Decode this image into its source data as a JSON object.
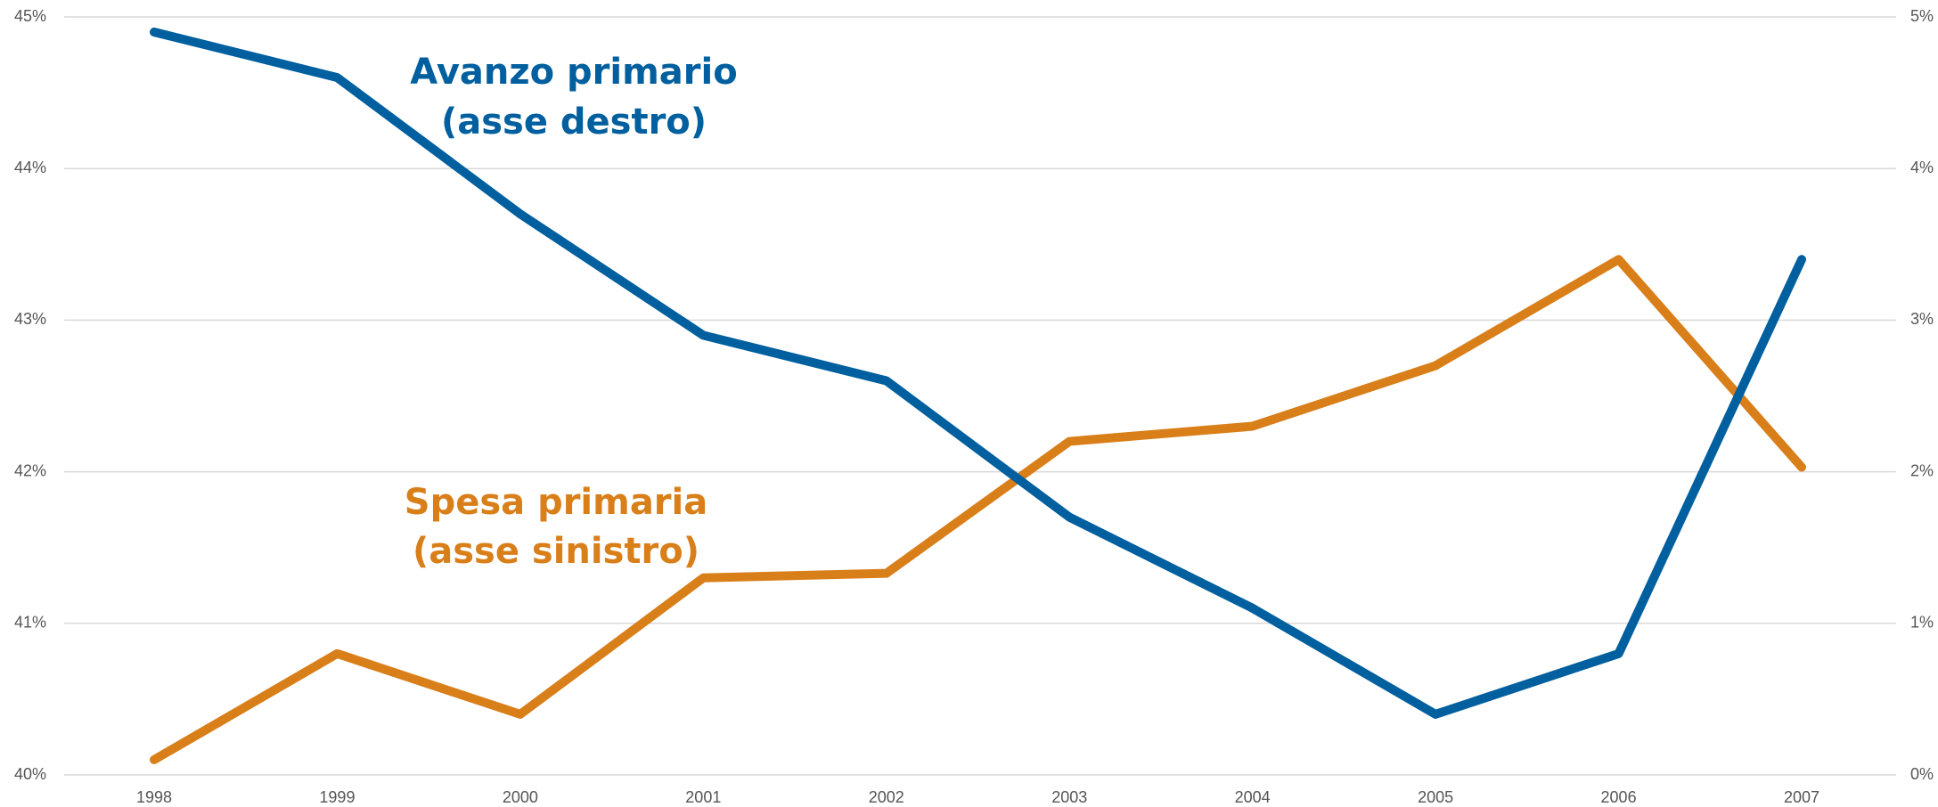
{
  "chart_data": {
    "type": "line",
    "categories": [
      "1998",
      "1999",
      "2000",
      "2001",
      "2002",
      "2003",
      "2004",
      "2005",
      "2006",
      "2007"
    ],
    "series": [
      {
        "name": "Spesa primaria",
        "color": "#d97f1a",
        "axis": "y",
        "values": [
          40.1,
          40.8,
          40.4,
          41.3,
          41.33,
          42.2,
          42.3,
          42.7,
          43.4,
          42.03
        ]
      },
      {
        "name": "Avanzo primario",
        "color": "#005f9e",
        "axis": "y2",
        "values": [
          4.9,
          4.6,
          3.7,
          2.9,
          2.6,
          1.7,
          1.1,
          0.4,
          0.8,
          3.4
        ]
      }
    ],
    "annotations": [
      "(asse sinistro)",
      "(asse destro)"
    ],
    "ylim": [
      40,
      45
    ],
    "yticks": [
      {
        "value": 40,
        "label": "40%"
      },
      {
        "value": 41,
        "label": "41%"
      },
      {
        "value": 42,
        "label": "42%"
      },
      {
        "value": 43,
        "label": "43%"
      },
      {
        "value": 44,
        "label": "44%"
      },
      {
        "value": 45,
        "label": "45%"
      }
    ],
    "y2lim": [
      0,
      5
    ],
    "y2ticks": [
      {
        "value": 0,
        "label": "0%"
      },
      {
        "value": 1,
        "label": "1%"
      },
      {
        "value": 2,
        "label": "2%"
      },
      {
        "value": 3,
        "label": "3%"
      },
      {
        "value": 4,
        "label": "4%"
      },
      {
        "value": 5,
        "label": "5%"
      }
    ],
    "grid": true
  }
}
